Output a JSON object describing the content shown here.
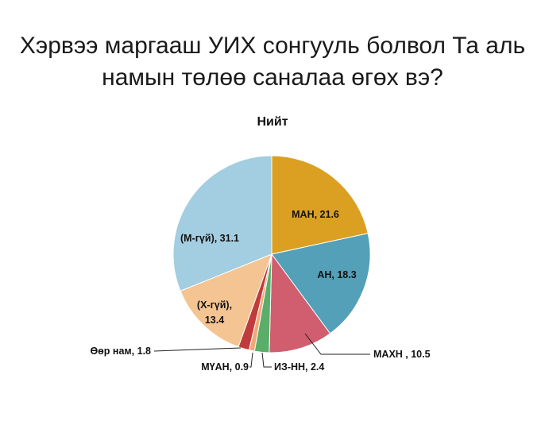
{
  "title_line1": "Хэрвээ маргааш УИХ сонгууль болвол Та аль",
  "title_line2": "намын төлөө саналаа өгөх вэ?",
  "chart_data": {
    "type": "pie",
    "title": "Хэрвээ маргааш УИХ сонгууль болвол Та аль намын төлөө саналаа өгөх вэ?",
    "subtitle": "Нийт",
    "slices": [
      {
        "label": "МАН",
        "value": 21.6,
        "color": "#dba021",
        "text": "МАН, 21.6"
      },
      {
        "label": "АН",
        "value": 18.3,
        "color": "#53a0b8",
        "text": "АН, 18.3"
      },
      {
        "label": "МАХН",
        "value": 10.5,
        "color": "#d05e6e",
        "text": "МАХН , 10.5"
      },
      {
        "label": "ИЗ-НН",
        "value": 2.4,
        "color": "#5aae6a",
        "text": "ИЗ-НН, 2.4"
      },
      {
        "label": "МҮАН",
        "value": 0.9,
        "color": "#f1a877",
        "text": "МҮАН, 0.9"
      },
      {
        "label": "Өөр нам",
        "value": 1.8,
        "color": "#c03c3c",
        "text": "Өөр нам, 1.8"
      },
      {
        "label": "(Х-гүй)",
        "value": 13.4,
        "color": "#f4c493",
        "text_lines": [
          "(Х-гүй),",
          "13.4"
        ]
      },
      {
        "label": "(М-гүй)",
        "value": 31.1,
        "color": "#a3cde0",
        "text": "(М-гүй), 31.1"
      }
    ]
  }
}
